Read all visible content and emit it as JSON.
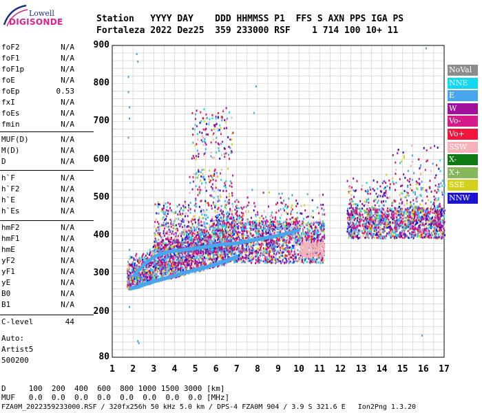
{
  "logo": {
    "line1": "Lowell",
    "line2": "DIGISONDE"
  },
  "header": {
    "line1": "Station   YYYY DAY    DDD HHMMSS P1  FFS S AXN PPS IGA PS",
    "line2": "Fortaleza 2022 Dez25  359 233000 RSF    1 714 100 10+ 11"
  },
  "parameters": [
    {
      "name": "foF2",
      "value": "N/A"
    },
    {
      "name": "foF1",
      "value": "N/A"
    },
    {
      "name": "foF1p",
      "value": "N/A"
    },
    {
      "name": "foE",
      "value": "N/A"
    },
    {
      "name": "foEp",
      "value": "0.53"
    },
    {
      "name": "fxI",
      "value": "N/A"
    },
    {
      "name": "foEs",
      "value": "N/A"
    },
    {
      "name": "fmin",
      "value": "N/A"
    },
    {
      "name": "MUF(D)",
      "value": "N/A"
    },
    {
      "name": "M(D)",
      "value": "N/A"
    },
    {
      "name": "D",
      "value": "N/A"
    },
    {
      "name": "h`F",
      "value": "N/A"
    },
    {
      "name": "h`F2",
      "value": "N/A"
    },
    {
      "name": "h`E",
      "value": "N/A"
    },
    {
      "name": "h`Es",
      "value": "N/A"
    },
    {
      "name": "hmF2",
      "value": "N/A"
    },
    {
      "name": "hmF1",
      "value": "N/A"
    },
    {
      "name": "hmE",
      "value": "N/A"
    },
    {
      "name": "yF2",
      "value": "N/A"
    },
    {
      "name": "yF1",
      "value": "N/A"
    },
    {
      "name": "yE",
      "value": "N/A"
    },
    {
      "name": "B0",
      "value": "N/A"
    },
    {
      "name": "B1",
      "value": "N/A"
    },
    {
      "name": "C-level",
      "value": "44"
    }
  ],
  "autoscaling": {
    "line1": "Auto:",
    "line2": "Artist5",
    "line3": "500200"
  },
  "legend": [
    {
      "label": "NoVal",
      "color": "#8c8c8c"
    },
    {
      "label": "NNE",
      "color": "#12d9f0"
    },
    {
      "label": "E",
      "color": "#4aa6ec"
    },
    {
      "label": "W",
      "color": "#a0129c"
    },
    {
      "label": "Vo-",
      "color": "#d61a8a"
    },
    {
      "label": "Vo+",
      "color": "#f2143c"
    },
    {
      "label": "SSW",
      "color": "#f4b3b8"
    },
    {
      "label": "X-",
      "color": "#0f7a14"
    },
    {
      "label": "X+",
      "color": "#86b85a"
    },
    {
      "label": "SSE",
      "color": "#d2d21a"
    },
    {
      "label": "NNW",
      "color": "#1c14d0"
    }
  ],
  "footer": {
    "line1": "D     100  200  400  600  800 1000 1500 3000 [km]",
    "line2": "MUF   0.0  0.0  0.0  0.0  0.0  0.0  0.0  0.0 [MHz]",
    "line3": "FZA0M_2022359233000.RSF / 320fx256h 50 kHz 5.0 km / DPS-4 FZA0M 904 / 3.9 S 321.6 E   Ion2Png 1.3.20"
  },
  "chart_data": {
    "type": "scatter",
    "x_range": [
      1,
      17
    ],
    "y_range": [
      80,
      900
    ],
    "x_ticks": [
      1,
      2,
      3,
      4,
      5,
      6,
      7,
      8,
      9,
      10,
      11,
      12,
      13,
      14,
      15,
      16,
      17
    ],
    "y_ticks": [
      80,
      200,
      300,
      400,
      500,
      600,
      700,
      800,
      900
    ],
    "grid": true,
    "legend_position": "right",
    "clusters": [
      {
        "name": "F-trace lower edge",
        "color": "#4aa6ec",
        "x": [
          1.8,
          2.2,
          2.6,
          3.0,
          3.5,
          4.0,
          4.5,
          5.0,
          5.5,
          6.0,
          6.5,
          7.0
        ],
        "y": [
          265,
          270,
          278,
          285,
          292,
          300,
          308,
          315,
          322,
          330,
          340,
          350
        ]
      },
      {
        "name": "F-trace upper branch",
        "color": "#4aa6ec",
        "x": [
          2.0,
          2.5,
          3.0,
          3.5,
          4.0,
          4.5,
          5.0,
          5.5,
          6.0,
          7.0,
          8.0,
          9.0,
          10.0
        ],
        "y": [
          300,
          330,
          350,
          360,
          365,
          368,
          372,
          375,
          380,
          385,
          395,
          405,
          420
        ]
      }
    ]
  }
}
